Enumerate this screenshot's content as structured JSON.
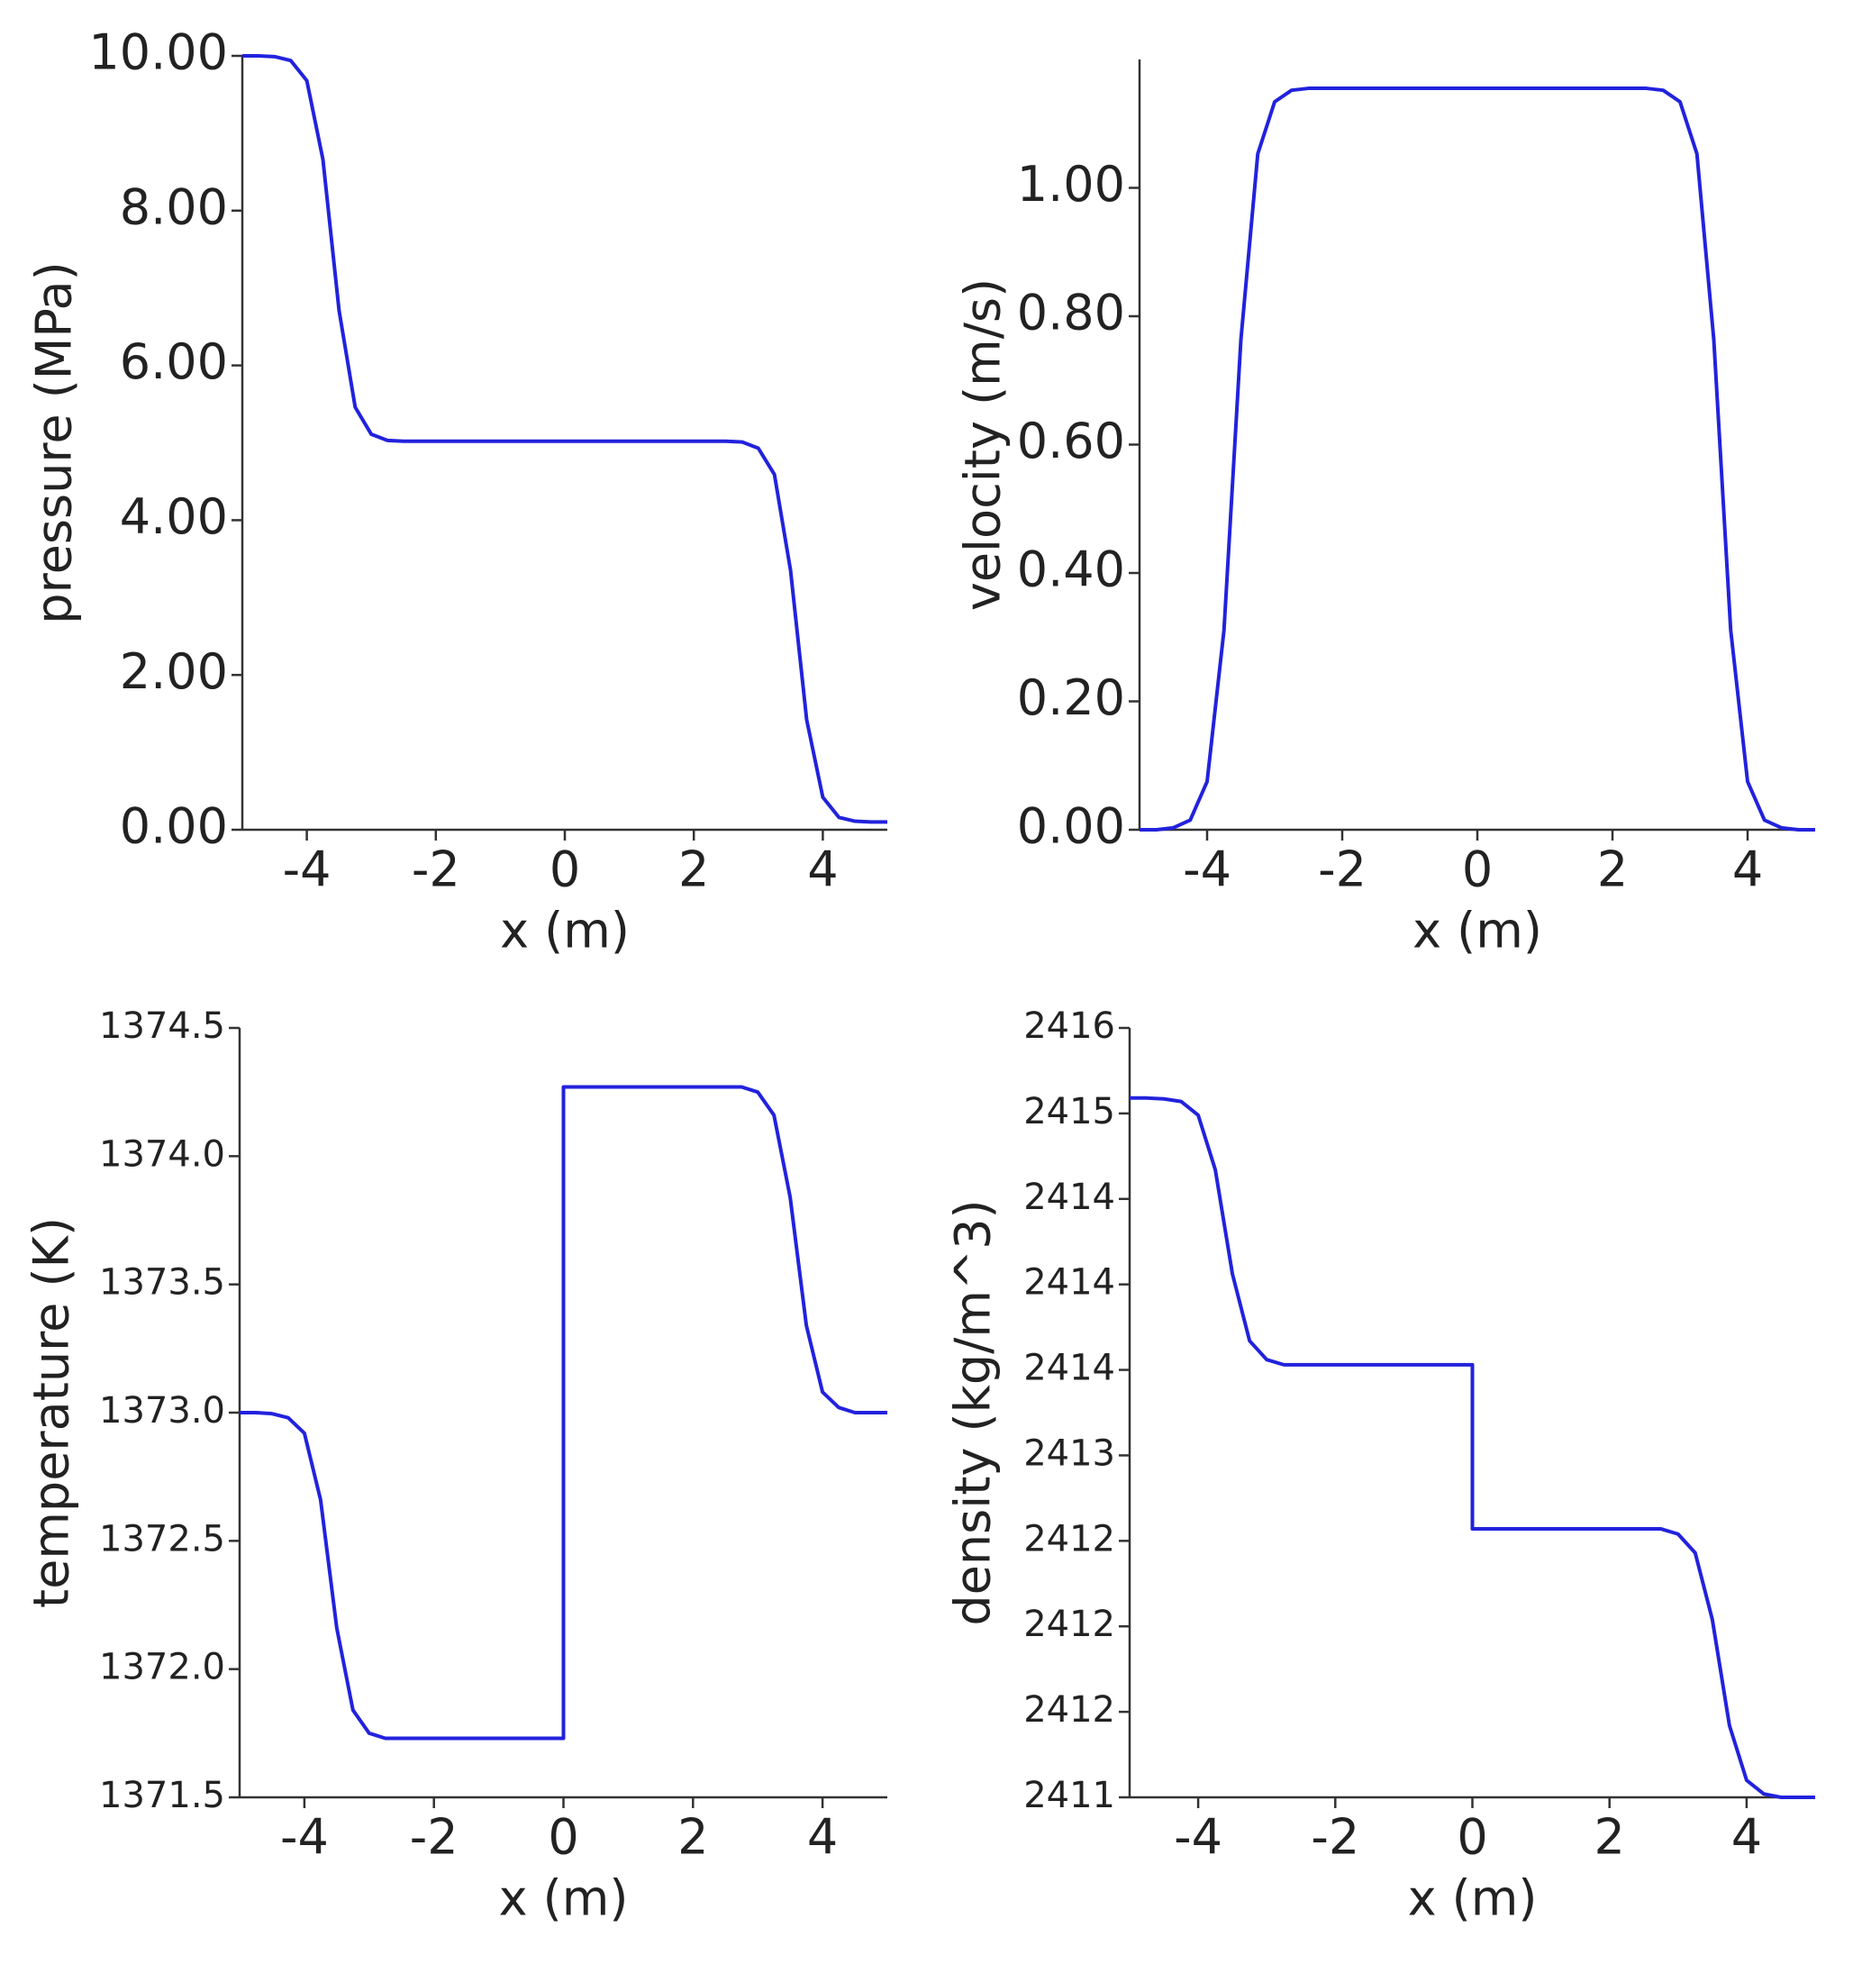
{
  "chart_data": [
    {
      "type": "line",
      "xlabel": "x (m)",
      "ylabel": "pressure (MPa)",
      "x": [
        -5,
        -4.75,
        -4.5,
        -4.25,
        -4,
        -3.75,
        -3.5,
        -3.25,
        -3,
        -2.75,
        -2.5,
        -2.25,
        -2,
        -1.75,
        -1.5,
        -1.25,
        -1,
        -0.75,
        -0.5,
        -0.25,
        0,
        0.25,
        0.5,
        0.75,
        1,
        1.25,
        1.5,
        1.75,
        2,
        2.25,
        2.5,
        2.75,
        3,
        3.25,
        3.5,
        3.75,
        4,
        4.25,
        4.5,
        4.75,
        5
      ],
      "series": [
        {
          "color": "#2222dd",
          "values": [
            10,
            10,
            9.99,
            9.94,
            9.68,
            8.66,
            6.71,
            5.46,
            5.11,
            5.03,
            5.02,
            5.02,
            5.02,
            5.02,
            5.02,
            5.02,
            5.02,
            5.02,
            5.02,
            5.02,
            5.02,
            5.02,
            5.02,
            5.02,
            5.02,
            5.02,
            5.02,
            5.02,
            5.02,
            5.02,
            5.02,
            5.01,
            4.93,
            4.59,
            3.35,
            1.42,
            0.42,
            0.16,
            0.11,
            0.1,
            0.1
          ]
        }
      ],
      "xlim": [
        -5,
        5
      ],
      "xticks": [
        -4,
        -2,
        0,
        2,
        4
      ],
      "ylim": [
        0,
        10
      ],
      "yticks": [
        {
          "value": 0,
          "label": "0.00"
        },
        {
          "value": 2,
          "label": "2.00"
        },
        {
          "value": 4,
          "label": "4.00"
        },
        {
          "value": 6,
          "label": "6.00"
        },
        {
          "value": 8,
          "label": "8.00"
        },
        {
          "value": 10,
          "label": "10.00"
        }
      ]
    },
    {
      "type": "line",
      "xlabel": "x (m)",
      "ylabel": "velocity (m/s)",
      "x": [
        -5,
        -4.75,
        -4.5,
        -4.25,
        -4,
        -3.75,
        -3.5,
        -3.25,
        -3,
        -2.75,
        -2.5,
        -2.25,
        -2,
        -1.75,
        -1.5,
        -1.25,
        -1,
        -0.75,
        -0.5,
        -0.25,
        0,
        0.25,
        0.5,
        0.75,
        1,
        1.25,
        1.5,
        1.75,
        2,
        2.25,
        2.5,
        2.75,
        3,
        3.25,
        3.5,
        3.75,
        4,
        4.25,
        4.5,
        4.75,
        5
      ],
      "series": [
        {
          "color": "#2222dd",
          "values": [
            0,
            0,
            0.003,
            0.015,
            0.075,
            0.311,
            0.763,
            1.053,
            1.134,
            1.152,
            1.155,
            1.155,
            1.155,
            1.155,
            1.155,
            1.155,
            1.155,
            1.155,
            1.155,
            1.155,
            1.155,
            1.155,
            1.155,
            1.155,
            1.155,
            1.155,
            1.155,
            1.155,
            1.155,
            1.155,
            1.155,
            1.152,
            1.134,
            1.053,
            0.763,
            0.311,
            0.075,
            0.015,
            0.003,
            0,
            0
          ]
        }
      ],
      "xlim": [
        -5,
        5
      ],
      "xticks": [
        -4,
        -2,
        0,
        2,
        4
      ],
      "ylim": [
        0,
        1.2
      ],
      "yticks": [
        {
          "value": 0,
          "label": "0.00"
        },
        {
          "value": 0.2,
          "label": "0.20"
        },
        {
          "value": 0.4,
          "label": "0.40"
        },
        {
          "value": 0.6,
          "label": "0.60"
        },
        {
          "value": 0.8,
          "label": "0.80"
        },
        {
          "value": 1,
          "label": "1.00"
        }
      ]
    },
    {
      "type": "line",
      "xlabel": "x (m)",
      "ylabel": "temperature (K)",
      "x": [
        -5,
        -4.75,
        -4.5,
        -4.25,
        -4,
        -3.75,
        -3.5,
        -3.25,
        -3,
        -2.75,
        -2.5,
        -2.25,
        -2,
        -1.75,
        -1.5,
        -1.25,
        -1,
        -0.75,
        -0.5,
        -0.25,
        0,
        0,
        0.25,
        0.5,
        0.75,
        1,
        1.25,
        1.5,
        1.75,
        2,
        2.25,
        2.5,
        2.75,
        3,
        3.25,
        3.5,
        3.75,
        4,
        4.25,
        4.5,
        4.75,
        5
      ],
      "series": [
        {
          "color": "#2222dd",
          "values": [
            1373.0,
            1373.0,
            1372.996,
            1372.98,
            1372.92,
            1372.66,
            1372.16,
            1371.84,
            1371.75,
            1371.73,
            1371.73,
            1371.73,
            1371.73,
            1371.73,
            1371.73,
            1371.73,
            1371.73,
            1371.73,
            1371.73,
            1371.73,
            1371.73,
            1374.27,
            1374.27,
            1374.27,
            1374.27,
            1374.27,
            1374.27,
            1374.27,
            1374.27,
            1374.27,
            1374.27,
            1374.27,
            1374.27,
            1374.25,
            1374.16,
            1373.84,
            1373.34,
            1373.08,
            1373.02,
            1373.0,
            1373.0,
            1373.0
          ]
        }
      ],
      "xlim": [
        -5,
        5
      ],
      "xticks": [
        -4,
        -2,
        0,
        2,
        4
      ],
      "ylim": [
        1371.5,
        1374.5
      ],
      "yticks": [
        1371.5,
        {
          "value": 1372,
          "label": "1372.0"
        },
        1372.5,
        {
          "value": 1373,
          "label": "1373.0"
        },
        1373.5,
        {
          "value": 1374,
          "label": "1374.0"
        },
        1374.5
      ]
    },
    {
      "type": "line",
      "xlabel": "x (m)",
      "ylabel": "density (kg/m^3)",
      "x": [
        -5,
        -4.75,
        -4.5,
        -4.25,
        -4,
        -3.75,
        -3.5,
        -3.25,
        -3,
        -2.75,
        -2.5,
        -2.25,
        -2,
        -1.75,
        -1.5,
        -1.25,
        -1,
        -0.75,
        -0.5,
        -0.25,
        0,
        0,
        0.25,
        0.5,
        0.75,
        1,
        1.25,
        1.5,
        1.75,
        2,
        2.25,
        2.5,
        2.75,
        3,
        3.25,
        3.5,
        3.75,
        4,
        4.25,
        4.5,
        4.75,
        5
      ],
      "series": [
        {
          "color": "#2222dd",
          "values": [
            2415.09,
            2415.09,
            2415.085,
            2415.07,
            2414.99,
            2414.67,
            2414.06,
            2413.67,
            2413.56,
            2413.53,
            2413.53,
            2413.53,
            2413.53,
            2413.53,
            2413.53,
            2413.53,
            2413.53,
            2413.53,
            2413.53,
            2413.53,
            2413.53,
            2412.57,
            2412.57,
            2412.57,
            2412.57,
            2412.57,
            2412.57,
            2412.57,
            2412.57,
            2412.57,
            2412.57,
            2412.57,
            2412.57,
            2412.54,
            2412.43,
            2412.04,
            2411.42,
            2411.1,
            2411.02,
            2411.0,
            2411.0,
            2411.0
          ]
        }
      ],
      "xlim": [
        -5,
        5
      ],
      "xticks": [
        -4,
        -2,
        0,
        2,
        4
      ],
      "ylim": [
        2411,
        2415.5
      ],
      "yticks": [
        2411,
        {
          "value": 2411.5,
          "label": "2412"
        },
        2412,
        {
          "value": 2412.5,
          "label": "2412"
        },
        2413,
        {
          "value": 2413.5,
          "label": "2414"
        },
        2414,
        {
          "value": 2414.5,
          "label": "2414"
        },
        2415,
        {
          "value": 2415.5,
          "label": "2416"
        }
      ]
    }
  ]
}
